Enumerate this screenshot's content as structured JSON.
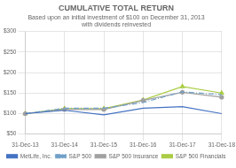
{
  "chart_data": {
    "type": "line",
    "title": "CUMULATIVE TOTAL RETURN",
    "subtitle": [
      "Based upon an initial investment of $100 on December 31, 2013",
      "with dividends reinvested"
    ],
    "categories": [
      "31-Dec-13",
      "31-Dec-14",
      "31-Dec-15",
      "31-Dec-16",
      "31-Dec-17",
      "31-Dec-18"
    ],
    "series": [
      {
        "name": "MetLife, Inc.",
        "color": "#4472c4",
        "values": [
          100,
          108,
          97,
          113,
          117,
          100
        ],
        "line_style": "solid",
        "marker": "none"
      },
      {
        "name": "S&P 500",
        "color": "#70a0c8",
        "values": [
          100,
          113,
          113,
          127,
          153,
          146
        ],
        "line_style": "dashdot",
        "marker": "none"
      },
      {
        "name": "S&P 500 Insurance",
        "color": "#a0a0a0",
        "values": [
          100,
          110,
          110,
          132,
          152,
          140
        ],
        "line_style": "solid",
        "marker": "circle"
      },
      {
        "name": "S&P 500 Financials",
        "color": "#aacc44",
        "values": [
          100,
          112,
          112,
          133,
          166,
          150
        ],
        "line_style": "solid",
        "marker": "triangle"
      }
    ],
    "ylim": [
      50,
      300
    ],
    "yticks": [
      {
        "value": 50,
        "label": "$50"
      },
      {
        "value": 100,
        "label": "$100"
      },
      {
        "value": 150,
        "label": "$150"
      },
      {
        "value": 200,
        "label": "$200"
      },
      {
        "value": 250,
        "label": "$250"
      },
      {
        "value": 300,
        "label": "$300"
      }
    ],
    "grid": true,
    "legend": "bottom"
  }
}
